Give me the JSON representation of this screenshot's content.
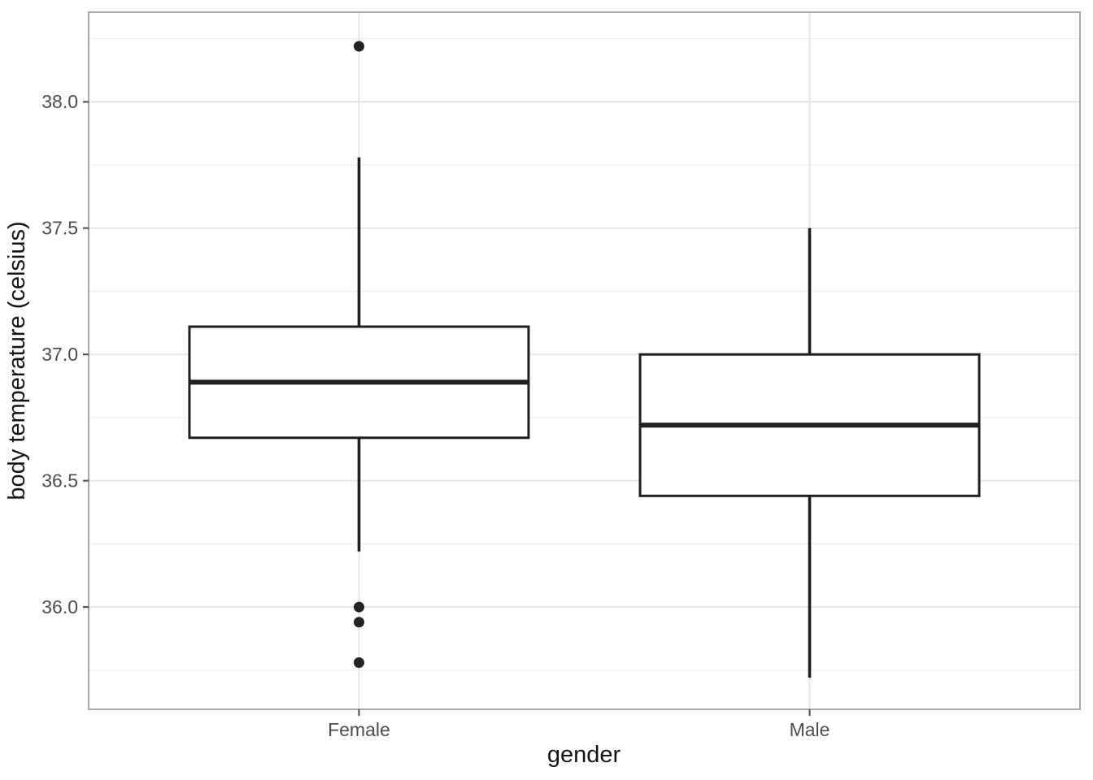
{
  "chart_data": {
    "type": "boxplot",
    "title": "",
    "xlabel": "gender",
    "ylabel": "body temperature (celsius)",
    "categories": [
      "Female",
      "Male"
    ],
    "ylim": [
      35.595,
      38.355
    ],
    "yticks": [
      36.0,
      36.5,
      37.0,
      37.5,
      38.0
    ],
    "ytick_labels": [
      "36.0",
      "36.5",
      "37.0",
      "37.5",
      "38.0"
    ],
    "yticks_minor": [
      35.75,
      36.25,
      36.75,
      37.25,
      37.75,
      38.25
    ],
    "grid": "major+minor horizontal, major vertical at categories",
    "legend": "none",
    "boxes": [
      {
        "category": "Female",
        "lower_whisker": 36.22,
        "q1": 36.67,
        "median": 36.89,
        "q3": 37.11,
        "upper_whisker": 37.78,
        "outliers": [
          38.22,
          36.0,
          35.94,
          35.78
        ]
      },
      {
        "category": "Male",
        "lower_whisker": 35.72,
        "q1": 36.44,
        "median": 36.72,
        "q3": 37.0,
        "upper_whisker": 37.5,
        "outliers": []
      }
    ]
  },
  "style": {
    "background": "#FFFFFF",
    "panel_border": "#A8A8A8",
    "grid_major": "#E4E4E4",
    "grid_minor": "#F0F0F0",
    "box_color": "#1F1F1F",
    "tick_color": "#4A4A4A",
    "tick_label_color": "#4D4D4D",
    "axis_title_color": "#141414"
  }
}
